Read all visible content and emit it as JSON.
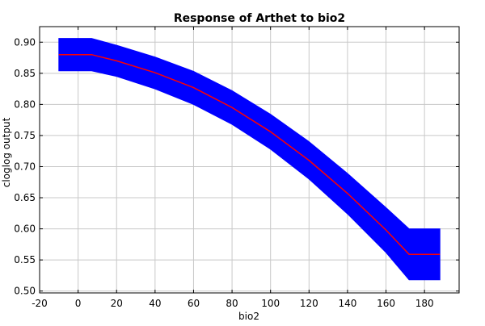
{
  "chart_data": {
    "type": "area",
    "title": "Response of Arthet to bio2",
    "xlabel": "bio2",
    "ylabel": "cloglog output",
    "xlim": [
      -20,
      198
    ],
    "ylim": [
      0.497,
      0.925
    ],
    "xticks": [
      -20,
      0,
      20,
      40,
      60,
      80,
      100,
      120,
      140,
      160,
      180
    ],
    "yticks": [
      0.5,
      0.55,
      0.6,
      0.65,
      0.7,
      0.75,
      0.8,
      0.85,
      0.9
    ],
    "ytick_labels": [
      "0.50",
      "0.55",
      "0.60",
      "0.65",
      "0.70",
      "0.75",
      "0.80",
      "0.85",
      "0.90"
    ],
    "grid": true,
    "series": [
      {
        "kind": "band",
        "color": "#0000ff",
        "x": [
          -10,
          7,
          20,
          40,
          60,
          80,
          100,
          120,
          140,
          160,
          172,
          188
        ],
        "lower": [
          0.854,
          0.854,
          0.845,
          0.825,
          0.8,
          0.768,
          0.728,
          0.68,
          0.624,
          0.562,
          0.518,
          0.518
        ],
        "upper": [
          0.906,
          0.906,
          0.895,
          0.876,
          0.853,
          0.822,
          0.784,
          0.74,
          0.689,
          0.634,
          0.6,
          0.6
        ]
      },
      {
        "kind": "line",
        "color": "#ff0000",
        "x": [
          -10,
          7,
          20,
          40,
          60,
          80,
          100,
          120,
          140,
          160,
          172,
          188
        ],
        "y": [
          0.88,
          0.88,
          0.87,
          0.851,
          0.827,
          0.795,
          0.756,
          0.71,
          0.657,
          0.598,
          0.559,
          0.559
        ]
      }
    ]
  },
  "colors": {
    "band": "#0000ff",
    "line": "#ff0000",
    "grid": "#c8c8c8",
    "frame": "#000000"
  }
}
